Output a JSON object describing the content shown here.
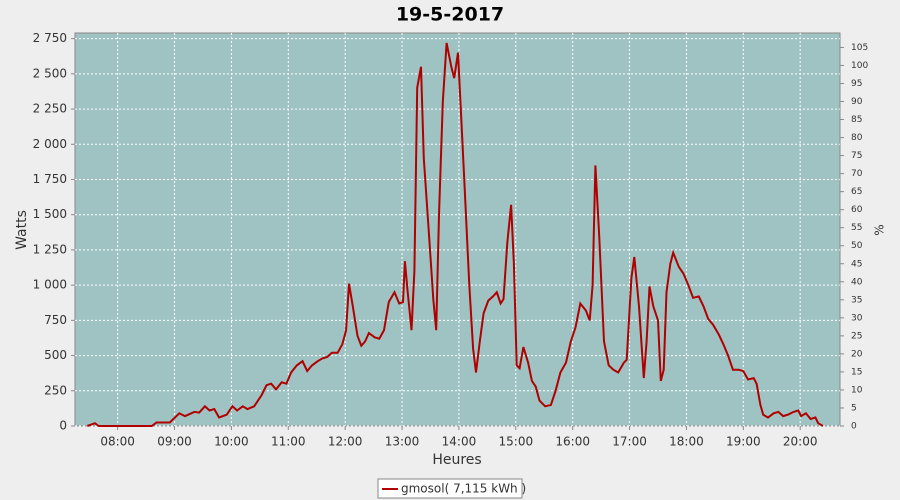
{
  "chart_data": {
    "type": "line",
    "title": "19-5-2017",
    "x_label": "Heures",
    "y_label": "Watts",
    "y2_label": "%",
    "x": [
      "07:28",
      "07:36",
      "07:40",
      "08:36",
      "08:41",
      "08:55",
      "09:05",
      "09:11",
      "09:21",
      "09:26",
      "09:32",
      "09:37",
      "09:42",
      "09:47",
      "09:55",
      "10:01",
      "10:06",
      "10:12",
      "10:17",
      "10:24",
      "10:32",
      "10:37",
      "10:42",
      "10:47",
      "10:53",
      "10:58",
      "11:03",
      "11:09",
      "11:15",
      "11:20",
      "11:25",
      "11:31",
      "11:36",
      "11:41",
      "11:46",
      "11:52",
      "11:57",
      "12:01",
      "12:04",
      "12:08",
      "12:13",
      "12:17",
      "12:21",
      "12:25",
      "12:31",
      "12:36",
      "12:41",
      "12:46",
      "12:52",
      "12:57",
      "13:01",
      "13:03",
      "13:06",
      "13:10",
      "13:13",
      "13:16",
      "13:20",
      "13:23",
      "13:28",
      "13:33",
      "13:36",
      "13:39",
      "13:43",
      "13:47",
      "13:52",
      "13:55",
      "13:59",
      "14:02",
      "14:06",
      "14:11",
      "14:15",
      "14:18",
      "14:22",
      "14:26",
      "14:31",
      "14:36",
      "14:40",
      "14:44",
      "14:47",
      "14:51",
      "14:55",
      "14:58",
      "15:01",
      "15:04",
      "15:08",
      "15:13",
      "15:17",
      "15:21",
      "15:25",
      "15:31",
      "15:37",
      "15:42",
      "15:47",
      "15:53",
      "15:58",
      "16:03",
      "16:08",
      "16:14",
      "16:18",
      "16:21",
      "16:24",
      "16:28",
      "16:33",
      "16:38",
      "16:43",
      "16:48",
      "16:54",
      "16:57",
      "17:02",
      "17:05",
      "17:10",
      "17:15",
      "17:18",
      "17:21",
      "17:25",
      "17:30",
      "17:33",
      "17:36",
      "17:39",
      "17:43",
      "17:46",
      "17:52",
      "17:57",
      "18:02",
      "18:07",
      "18:13",
      "18:18",
      "18:23",
      "18:28",
      "18:34",
      "18:39",
      "18:44",
      "18:49",
      "18:55",
      "19:00",
      "19:05",
      "19:11",
      "19:14",
      "19:18",
      "19:21",
      "19:26",
      "19:32",
      "19:37",
      "19:42",
      "19:47",
      "19:53",
      "19:58",
      "20:01",
      "20:06",
      "20:11",
      "20:16",
      "20:19",
      "20:24"
    ],
    "series": [
      {
        "name": "gmosol( 7,115 kWh )",
        "color": "#b00000",
        "values": [
          0,
          20,
          0,
          0,
          25,
          25,
          90,
          70,
          100,
          95,
          140,
          110,
          120,
          60,
          80,
          140,
          110,
          140,
          120,
          140,
          220,
          290,
          300,
          260,
          310,
          300,
          380,
          430,
          460,
          390,
          430,
          460,
          480,
          490,
          520,
          520,
          580,
          680,
          1010,
          850,
          640,
          570,
          600,
          660,
          630,
          620,
          680,
          880,
          950,
          870,
          880,
          1170,
          950,
          680,
          1100,
          2400,
          2550,
          1900,
          1400,
          900,
          680,
          1500,
          2300,
          2720,
          2550,
          2470,
          2650,
          2250,
          1700,
          1000,
          550,
          380,
          600,
          800,
          890,
          920,
          950,
          870,
          900,
          1300,
          1570,
          1150,
          430,
          410,
          560,
          450,
          320,
          280,
          180,
          140,
          150,
          250,
          380,
          450,
          600,
          700,
          870,
          820,
          750,
          1000,
          1850,
          1350,
          600,
          430,
          400,
          380,
          450,
          470,
          1050,
          1200,
          850,
          340,
          600,
          990,
          850,
          750,
          320,
          400,
          950,
          1150,
          1230,
          1130,
          1080,
          1000,
          910,
          920,
          850,
          760,
          720,
          650,
          580,
          500,
          400,
          400,
          390,
          330,
          340,
          300,
          150,
          80,
          60,
          90,
          100,
          70,
          80,
          100,
          110,
          70,
          90,
          50,
          60,
          20,
          0
        ]
      }
    ],
    "xlim": [
      "07:15",
      "20:42"
    ],
    "xticks": [
      "08:00",
      "09:00",
      "10:00",
      "11:00",
      "12:00",
      "13:00",
      "14:00",
      "15:00",
      "16:00",
      "17:00",
      "18:00",
      "19:00",
      "20:00"
    ],
    "ylim": [
      0,
      2790
    ],
    "yticks": [
      0,
      250,
      500,
      750,
      {
        "value": 1000,
        "label": "1 000"
      },
      {
        "value": 1250,
        "label": "1 250"
      },
      {
        "value": 1500,
        "label": "1 500"
      },
      {
        "value": 1750,
        "label": "1 750"
      },
      {
        "value": 2000,
        "label": "2 000"
      },
      {
        "value": 2250,
        "label": "2 250"
      },
      {
        "value": 2500,
        "label": "2 500"
      },
      {
        "value": 2750,
        "label": "2 750"
      }
    ],
    "y2lim": [
      0,
      109
    ],
    "y2ticks": [
      0,
      5,
      10,
      15,
      20,
      25,
      30,
      35,
      40,
      45,
      50,
      55,
      60,
      65,
      70,
      75,
      80,
      85,
      90,
      95,
      100,
      105
    ],
    "grid": true
  }
}
